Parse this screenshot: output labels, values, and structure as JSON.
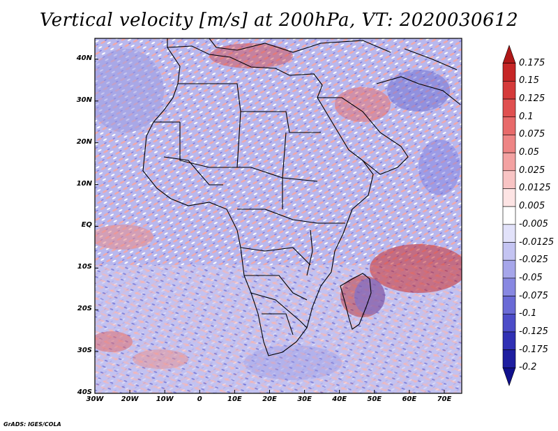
{
  "title": "Vertical velocity [m/s] at 200hPa, VT: 2020030612",
  "credit": "GrADS: IGES/COLA",
  "map": {
    "region": "Africa",
    "lat_labels": [
      "40N",
      "30N",
      "20N",
      "10N",
      "EQ",
      "10S",
      "20S",
      "30S",
      "40S"
    ],
    "lat_values": [
      40,
      30,
      20,
      10,
      0,
      -10,
      -20,
      -30,
      -40
    ],
    "lon_labels": [
      "30W",
      "20W",
      "10W",
      "0",
      "10E",
      "20E",
      "30E",
      "40E",
      "50E",
      "60E",
      "70E"
    ],
    "lon_values": [
      -30,
      -20,
      -10,
      0,
      10,
      20,
      30,
      40,
      50,
      60,
      70
    ],
    "lon_range": [
      -30,
      75
    ],
    "lat_range": [
      -40,
      45
    ]
  },
  "colorbar": {
    "labels": [
      "0.175",
      "0.15",
      "0.125",
      "0.1",
      "0.075",
      "0.05",
      "0.025",
      "0.0125",
      "0.005",
      "-0.005",
      "-0.0125",
      "-0.025",
      "-0.05",
      "-0.075",
      "-0.1",
      "-0.125",
      "-0.175",
      "-0.2"
    ],
    "colors": [
      "#b01818",
      "#c62626",
      "#d53a3a",
      "#e05050",
      "#e86a6a",
      "#ee8585",
      "#f3a2a2",
      "#f8c4c4",
      "#fde4e4",
      "#ffffff",
      "#e2e2fa",
      "#c4c4f2",
      "#a6a6ea",
      "#8888e2",
      "#6a6ad6",
      "#4c4cc8",
      "#3030b4",
      "#1e1ea0",
      "#10108c"
    ]
  },
  "features": {
    "madagascar_anticyclone_label": "",
    "colors": {
      "land_outline": "#000000",
      "positive": "#d02020",
      "negative": "#2020c0"
    }
  }
}
